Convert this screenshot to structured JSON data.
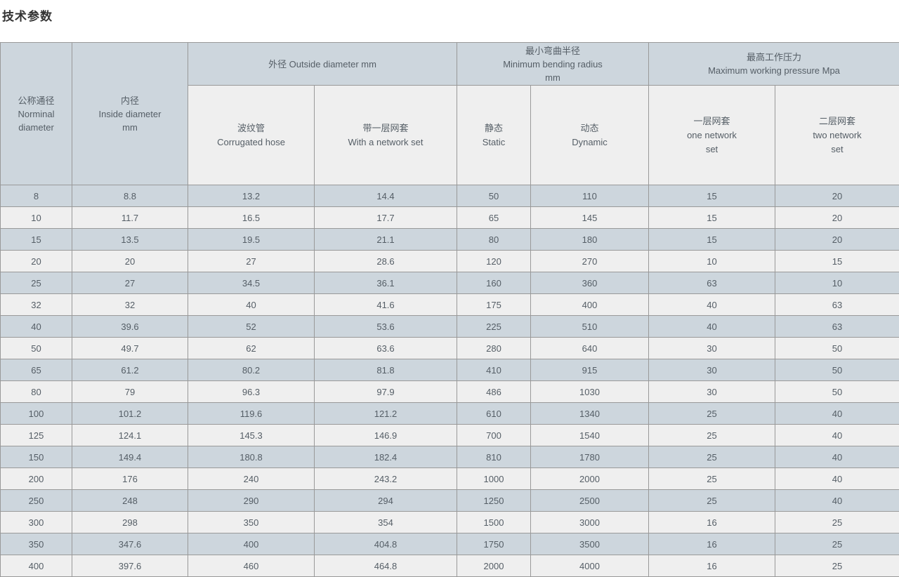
{
  "page": {
    "title": "技术参数"
  },
  "colors": {
    "header_blue": "#cdd6dd",
    "row_blue": "#cdd6dd",
    "row_light": "#efefef",
    "border": "#999999",
    "text": "#555e66",
    "title_text": "#333333"
  },
  "table": {
    "columns": {
      "nominal": "公称通径\nNorminal\ndiameter",
      "inside": "内径\nInside diameter\nmm",
      "outside_group": "外径 Outside diameter mm",
      "corrugated": "波纹管\nCorrugated hose",
      "with_network": "带一层网套\nWith a network set",
      "bending_group": "最小弯曲半径\nMinimum bending radius\nmm",
      "static": "静态\nStatic",
      "dynamic": "动态\nDynamic",
      "pressure_group": "最高工作压力\nMaximum working pressure Mpa",
      "one_network": "一层网套\none network\nset",
      "two_network": "二层网套\ntwo network\nset"
    },
    "rows": [
      [
        "8",
        "8.8",
        "13.2",
        "14.4",
        "50",
        "110",
        "15",
        "20"
      ],
      [
        "10",
        "11.7",
        "16.5",
        "17.7",
        "65",
        "145",
        "15",
        "20"
      ],
      [
        "15",
        "13.5",
        "19.5",
        "21.1",
        "80",
        "180",
        "15",
        "20"
      ],
      [
        "20",
        "20",
        "27",
        "28.6",
        "120",
        "270",
        "10",
        "15"
      ],
      [
        "25",
        "27",
        "34.5",
        "36.1",
        "160",
        "360",
        "63",
        "10"
      ],
      [
        "32",
        "32",
        "40",
        "41.6",
        "175",
        "400",
        "40",
        "63"
      ],
      [
        "40",
        "39.6",
        "52",
        "53.6",
        "225",
        "510",
        "40",
        "63"
      ],
      [
        "50",
        "49.7",
        "62",
        "63.6",
        "280",
        "640",
        "30",
        "50"
      ],
      [
        "65",
        "61.2",
        "80.2",
        "81.8",
        "410",
        "915",
        "30",
        "50"
      ],
      [
        "80",
        "79",
        "96.3",
        "97.9",
        "486",
        "1030",
        "30",
        "50"
      ],
      [
        "100",
        "101.2",
        "119.6",
        "121.2",
        "610",
        "1340",
        "25",
        "40"
      ],
      [
        "125",
        "124.1",
        "145.3",
        "146.9",
        "700",
        "1540",
        "25",
        "40"
      ],
      [
        "150",
        "149.4",
        "180.8",
        "182.4",
        "810",
        "1780",
        "25",
        "40"
      ],
      [
        "200",
        "176",
        "240",
        "243.2",
        "1000",
        "2000",
        "25",
        "40"
      ],
      [
        "250",
        "248",
        "290",
        "294",
        "1250",
        "2500",
        "25",
        "40"
      ],
      [
        "300",
        "298",
        "350",
        "354",
        "1500",
        "3000",
        "16",
        "25"
      ],
      [
        "350",
        "347.6",
        "400",
        "404.8",
        "1750",
        "3500",
        "16",
        "25"
      ],
      [
        "400",
        "397.6",
        "460",
        "464.8",
        "2000",
        "4000",
        "16",
        "25"
      ]
    ]
  }
}
